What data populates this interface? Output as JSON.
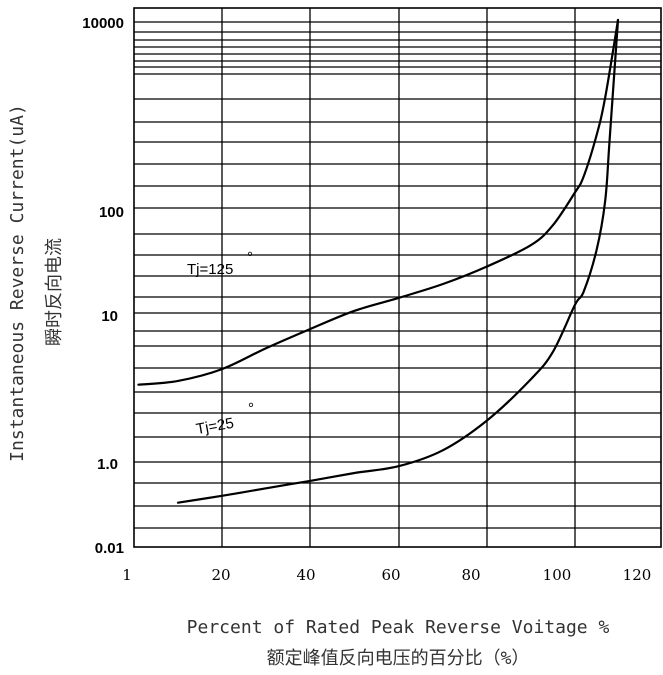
{
  "chart_data": {
    "type": "line",
    "xlabel": "Percent of Rated Peak Reverse Voitage %",
    "xlabel_cn": "额定峰值反向电压的百分比（%）",
    "ylabel": "Instantaneous Reverse Current(uA)",
    "ylabel_cn": "瞬时反向电流",
    "x_ticks": [
      "1",
      "20",
      "40",
      "60",
      "80",
      "100",
      "120"
    ],
    "y_ticks": [
      "10000",
      "100",
      "10",
      "1.0",
      "0.01"
    ],
    "grid": true,
    "series": [
      {
        "name": "Tj=125°",
        "label_text": "Tj=125",
        "label_mark": "°",
        "points": [
          [
            1,
            3.3
          ],
          [
            10,
            3.5
          ],
          [
            20,
            4.2
          ],
          [
            30,
            5.8
          ],
          [
            40,
            7.8
          ],
          [
            50,
            10.5
          ],
          [
            60,
            14
          ],
          [
            70,
            19
          ],
          [
            80,
            28
          ],
          [
            90,
            45
          ],
          [
            95,
            70
          ],
          [
            100,
            150
          ],
          [
            102,
            220
          ],
          [
            105,
            600
          ],
          [
            107,
            1500
          ],
          [
            110,
            10000
          ]
        ]
      },
      {
        "name": "Tj=25°",
        "label_text": "Tj=25",
        "label_mark": "°",
        "points": [
          [
            10,
            0.11
          ],
          [
            20,
            0.16
          ],
          [
            30,
            0.24
          ],
          [
            40,
            0.36
          ],
          [
            50,
            0.55
          ],
          [
            60,
            0.8
          ],
          [
            70,
            1.2
          ],
          [
            80,
            1.9
          ],
          [
            90,
            3.6
          ],
          [
            95,
            5.5
          ],
          [
            100,
            12
          ],
          [
            102,
            16
          ],
          [
            105,
            40
          ],
          [
            107,
            120
          ],
          [
            108,
            500
          ],
          [
            110,
            10000
          ]
        ]
      }
    ]
  }
}
